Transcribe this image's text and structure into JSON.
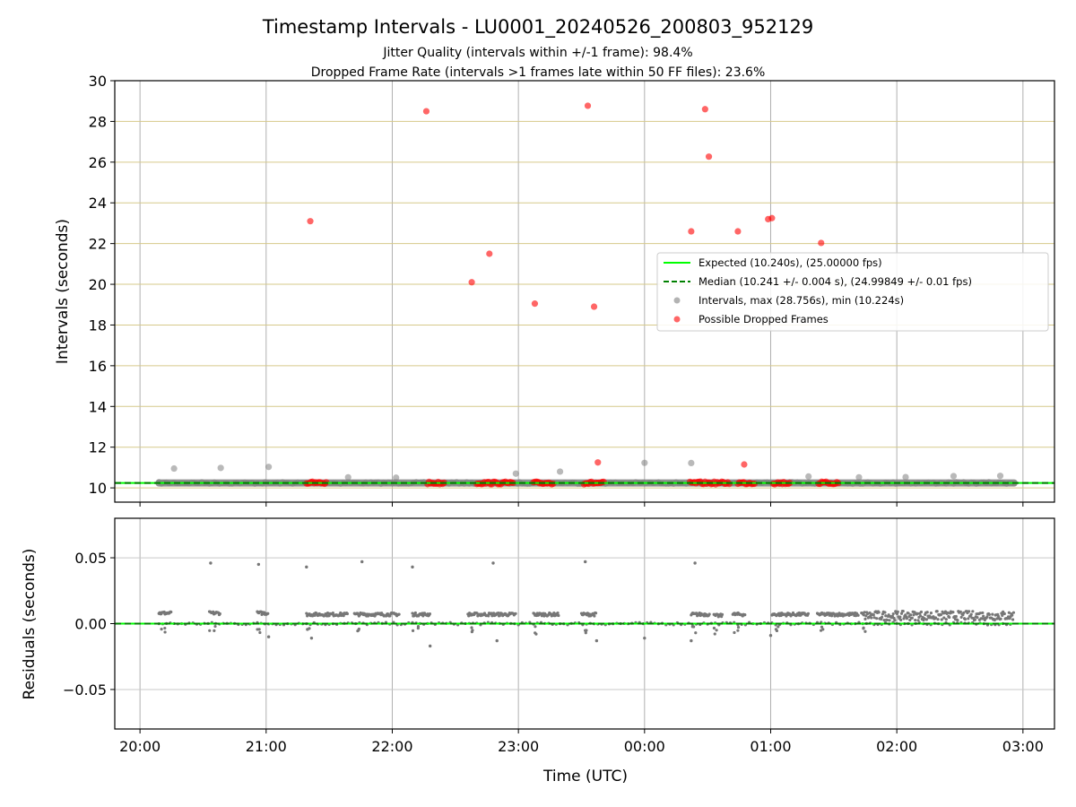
{
  "chart_data": {
    "type": "scatter",
    "title": "Timestamp Intervals - LU0001_20240526_200803_952129",
    "subtitle_1": "Jitter Quality (intervals within +/-1 frame): 98.4%",
    "subtitle_2": "Dropped Frame Rate (intervals >1 frames late within 50 FF files): 23.6%",
    "xlabel": "Time (UTC)",
    "x_ticks": [
      "20:00",
      "21:00",
      "22:00",
      "23:00",
      "00:00",
      "01:00",
      "02:00",
      "03:00"
    ],
    "x_range_hours": [
      19.8,
      27.25
    ],
    "x_tick_hours": [
      20,
      21,
      22,
      23,
      24,
      25,
      26,
      27
    ],
    "top": {
      "ylabel": "Intervals (seconds)",
      "ylim": [
        9.3,
        30
      ],
      "y_ticks": [
        "10",
        "12",
        "14",
        "16",
        "18",
        "20",
        "22",
        "24",
        "26",
        "28",
        "30"
      ],
      "y_tick_values": [
        10,
        12,
        14,
        16,
        18,
        20,
        22,
        24,
        26,
        28,
        30
      ],
      "grid_color": "#d6c98a",
      "expected_value": 10.24,
      "median_value": 10.241,
      "data_span_hours": [
        20.15,
        26.93
      ],
      "gray_outliers": [
        {
          "x": 20.27,
          "y": 10.95
        },
        {
          "x": 20.64,
          "y": 10.98
        },
        {
          "x": 21.02,
          "y": 11.03
        },
        {
          "x": 21.65,
          "y": 10.52
        },
        {
          "x": 22.03,
          "y": 10.5
        },
        {
          "x": 22.98,
          "y": 10.7
        },
        {
          "x": 23.33,
          "y": 10.8
        },
        {
          "x": 24.0,
          "y": 11.23
        },
        {
          "x": 24.37,
          "y": 11.22
        },
        {
          "x": 25.3,
          "y": 10.56
        },
        {
          "x": 25.7,
          "y": 10.52
        },
        {
          "x": 26.07,
          "y": 10.53
        },
        {
          "x": 26.45,
          "y": 10.58
        },
        {
          "x": 26.82,
          "y": 10.59
        }
      ],
      "dropped_frames": [
        {
          "x": 21.35,
          "y": 23.1
        },
        {
          "x": 22.27,
          "y": 28.5
        },
        {
          "x": 22.63,
          "y": 20.1
        },
        {
          "x": 22.77,
          "y": 21.5
        },
        {
          "x": 23.13,
          "y": 19.05
        },
        {
          "x": 23.55,
          "y": 28.77
        },
        {
          "x": 23.6,
          "y": 18.9
        },
        {
          "x": 23.63,
          "y": 11.25
        },
        {
          "x": 24.37,
          "y": 22.6
        },
        {
          "x": 24.48,
          "y": 28.6
        },
        {
          "x": 24.51,
          "y": 26.27
        },
        {
          "x": 24.74,
          "y": 22.6
        },
        {
          "x": 24.79,
          "y": 11.15
        },
        {
          "x": 24.98,
          "y": 23.2
        },
        {
          "x": 25.01,
          "y": 23.25
        },
        {
          "x": 25.4,
          "y": 22.03
        }
      ],
      "dropped_clusters_near_baseline": [
        [
          21.32,
          21.48
        ],
        [
          22.28,
          22.42
        ],
        [
          22.67,
          22.97
        ],
        [
          23.12,
          23.28
        ],
        [
          23.52,
          23.68
        ],
        [
          24.36,
          24.68
        ],
        [
          24.74,
          24.88
        ],
        [
          25.02,
          25.16
        ],
        [
          25.38,
          25.54
        ]
      ]
    },
    "bottom": {
      "ylabel": "Residuals (seconds)",
      "ylim": [
        -0.08,
        0.08
      ],
      "y_ticks": [
        "0.05",
        "0.00",
        "−0.05"
      ],
      "y_tick_values": [
        0.05,
        0.0,
        -0.05
      ],
      "zero_line": 0.0,
      "outliers": [
        {
          "x": 20.56,
          "y": 0.046
        },
        {
          "x": 20.94,
          "y": 0.045
        },
        {
          "x": 21.32,
          "y": 0.043
        },
        {
          "x": 21.76,
          "y": 0.047
        },
        {
          "x": 22.16,
          "y": 0.043
        },
        {
          "x": 22.8,
          "y": 0.046
        },
        {
          "x": 23.53,
          "y": 0.047
        },
        {
          "x": 24.4,
          "y": 0.046
        },
        {
          "x": 22.3,
          "y": -0.017
        },
        {
          "x": 24.0,
          "y": -0.011
        },
        {
          "x": 21.02,
          "y": -0.01
        },
        {
          "x": 21.36,
          "y": -0.011
        },
        {
          "x": 24.37,
          "y": -0.013
        },
        {
          "x": 25.0,
          "y": -0.009
        },
        {
          "x": 22.83,
          "y": -0.013
        },
        {
          "x": 23.62,
          "y": -0.013
        }
      ],
      "segments": [
        {
          "x0": 20.15,
          "x1": 20.25,
          "y": 0.008
        },
        {
          "x0": 20.55,
          "x1": 20.64,
          "y": 0.008
        },
        {
          "x0": 20.93,
          "x1": 21.02,
          "y": 0.008
        },
        {
          "x0": 21.32,
          "x1": 21.65,
          "y": 0.007
        },
        {
          "x0": 21.7,
          "x1": 22.06,
          "y": 0.007
        },
        {
          "x0": 22.16,
          "x1": 22.3,
          "y": 0.007
        },
        {
          "x0": 22.6,
          "x1": 22.98,
          "y": 0.007
        },
        {
          "x0": 23.12,
          "x1": 23.32,
          "y": 0.007
        },
        {
          "x0": 23.5,
          "x1": 23.62,
          "y": 0.007
        },
        {
          "x0": 24.37,
          "x1": 24.52,
          "y": 0.007
        },
        {
          "x0": 24.55,
          "x1": 24.62,
          "y": 0.006
        },
        {
          "x0": 24.7,
          "x1": 24.8,
          "y": 0.007
        },
        {
          "x0": 25.01,
          "x1": 25.3,
          "y": 0.007
        },
        {
          "x0": 25.37,
          "x1": 25.7,
          "y": 0.007
        },
        {
          "x0": 25.72,
          "x1": 26.93,
          "y": 0.006
        }
      ]
    },
    "legend": {
      "position": "upper-right",
      "entries": [
        {
          "label": "Expected (10.240s), (25.00000 fps)",
          "kind": "line",
          "color": "#00ff00"
        },
        {
          "label": "Median (10.241 +/- 0.004 s), (24.99849 +/- 0.01 fps)",
          "kind": "dashed",
          "color": "#008000"
        },
        {
          "label": "Intervals, max (28.756s), min (10.224s)",
          "kind": "marker",
          "color": "#808080"
        },
        {
          "label": "Possible Dropped Frames",
          "kind": "marker",
          "color": "#ff0000"
        }
      ]
    }
  }
}
